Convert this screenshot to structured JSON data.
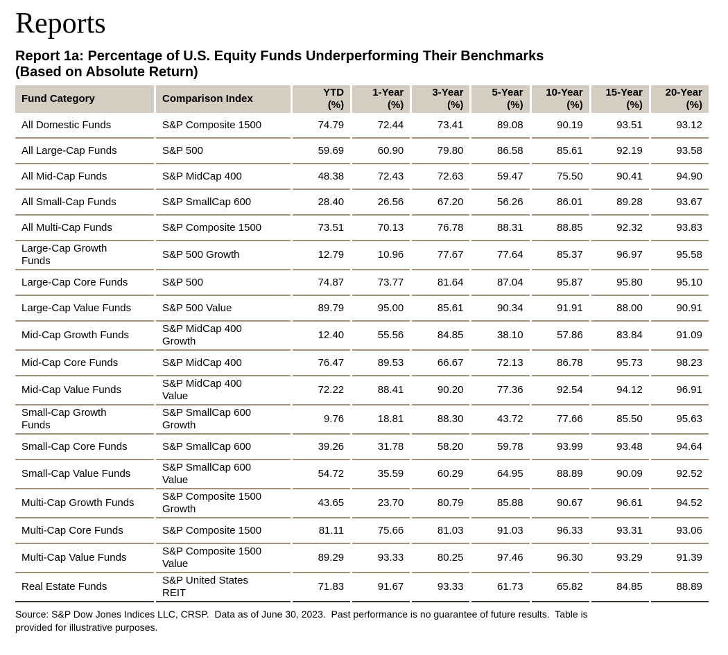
{
  "page": {
    "title": "Reports",
    "source_note": "Source: S&P Dow Jones Indices LLC, CRSP.  Data as of June 30, 2023.  Past performance is no guarantee of future results.  Table is\nprovided for illustrative purposes."
  },
  "report": {
    "heading_line1": "Report 1a: Percentage of U.S. Equity Funds Underperforming Their Benchmarks",
    "heading_line2": "(Based on Absolute Return)"
  },
  "colors": {
    "header_bg": "#d4cec2",
    "row_line": "#a3927a",
    "bottom_line": "#39362f"
  },
  "chart_data": {
    "type": "table",
    "title": "Report 1a: Percentage of U.S. Equity Funds Underperforming Their Benchmarks (Based on Absolute Return)",
    "columns": [
      {
        "id": "fund_category",
        "line1": "Fund Category",
        "line2": ""
      },
      {
        "id": "comparison_index",
        "line1": "Comparison Index",
        "line2": ""
      },
      {
        "id": "ytd",
        "line1": "YTD",
        "line2": "(%)"
      },
      {
        "id": "year_1",
        "line1": "1-Year",
        "line2": "(%)"
      },
      {
        "id": "year_3",
        "line1": "3-Year",
        "line2": "(%)"
      },
      {
        "id": "year_5",
        "line1": "5-Year",
        "line2": "(%)"
      },
      {
        "id": "year_10",
        "line1": "10-Year",
        "line2": "(%)"
      },
      {
        "id": "year_15",
        "line1": "15-Year",
        "line2": "(%)"
      },
      {
        "id": "year_20",
        "line1": "20-Year",
        "line2": "(%)"
      }
    ],
    "rows": [
      {
        "category": "All Domestic Funds",
        "index": "S&P Composite 1500",
        "values": [
          "74.79",
          "72.44",
          "73.41",
          "89.08",
          "90.19",
          "93.51",
          "93.12"
        ]
      },
      {
        "category": "All Large-Cap Funds",
        "index": "S&P 500",
        "values": [
          "59.69",
          "60.90",
          "79.80",
          "86.58",
          "85.61",
          "92.19",
          "93.58"
        ]
      },
      {
        "category": "All Mid-Cap Funds",
        "index": "S&P MidCap 400",
        "values": [
          "48.38",
          "72.43",
          "72.63",
          "59.47",
          "75.50",
          "90.41",
          "94.90"
        ]
      },
      {
        "category": "All Small-Cap Funds",
        "index": "S&P SmallCap 600",
        "values": [
          "28.40",
          "26.56",
          "67.20",
          "56.26",
          "86.01",
          "89.28",
          "93.67"
        ]
      },
      {
        "category": "All Multi-Cap Funds",
        "index": "S&P Composite 1500",
        "values": [
          "73.51",
          "70.13",
          "76.78",
          "88.31",
          "88.85",
          "92.32",
          "93.83"
        ]
      },
      {
        "category": "Large-Cap Growth\nFunds",
        "index": "S&P 500 Growth",
        "values": [
          "12.79",
          "10.96",
          "77.67",
          "77.64",
          "85.37",
          "96.97",
          "95.58"
        ]
      },
      {
        "category": "Large-Cap Core Funds",
        "index": "S&P 500",
        "values": [
          "74.87",
          "73.77",
          "81.64",
          "87.04",
          "95.87",
          "95.80",
          "95.10"
        ]
      },
      {
        "category": "Large-Cap Value Funds",
        "index": "S&P 500 Value",
        "values": [
          "89.79",
          "95.00",
          "85.61",
          "90.34",
          "91.91",
          "88.00",
          "90.91"
        ]
      },
      {
        "category": "Mid-Cap Growth Funds",
        "index": "S&P MidCap 400\nGrowth",
        "values": [
          "12.40",
          "55.56",
          "84.85",
          "38.10",
          "57.86",
          "83.84",
          "91.09"
        ]
      },
      {
        "category": "Mid-Cap Core Funds",
        "index": "S&P MidCap 400",
        "values": [
          "76.47",
          "89.53",
          "66.67",
          "72.13",
          "86.78",
          "95.73",
          "98.23"
        ]
      },
      {
        "category": "Mid-Cap Value Funds",
        "index": "S&P MidCap 400\nValue",
        "values": [
          "72.22",
          "88.41",
          "90.20",
          "77.36",
          "92.54",
          "94.12",
          "96.91"
        ]
      },
      {
        "category": "Small-Cap Growth\nFunds",
        "index": "S&P SmallCap 600\nGrowth",
        "values": [
          "9.76",
          "18.81",
          "88.30",
          "43.72",
          "77.66",
          "85.50",
          "95.63"
        ]
      },
      {
        "category": "Small-Cap Core Funds",
        "index": "S&P SmallCap 600",
        "values": [
          "39.26",
          "31.78",
          "58.20",
          "59.78",
          "93.99",
          "93.48",
          "94.64"
        ]
      },
      {
        "category": "Small-Cap Value Funds",
        "index": "S&P SmallCap 600\nValue",
        "values": [
          "54.72",
          "35.59",
          "60.29",
          "64.95",
          "88.89",
          "90.09",
          "92.52"
        ]
      },
      {
        "category": "Multi-Cap Growth Funds",
        "index": "S&P Composite 1500\nGrowth",
        "values": [
          "43.65",
          "23.70",
          "80.79",
          "85.88",
          "90.67",
          "96.61",
          "94.52"
        ]
      },
      {
        "category": "Multi-Cap Core Funds",
        "index": "S&P Composite 1500",
        "values": [
          "81.11",
          "75.66",
          "81.03",
          "91.03",
          "96.33",
          "93.31",
          "93.06"
        ]
      },
      {
        "category": "Multi-Cap Value Funds",
        "index": "S&P Composite 1500\nValue",
        "values": [
          "89.29",
          "93.33",
          "80.25",
          "97.46",
          "96.30",
          "93.29",
          "91.39"
        ]
      },
      {
        "category": "Real Estate Funds",
        "index": "S&P United States\nREIT",
        "values": [
          "71.83",
          "91.67",
          "93.33",
          "61.73",
          "65.82",
          "84.85",
          "88.89"
        ]
      }
    ]
  }
}
